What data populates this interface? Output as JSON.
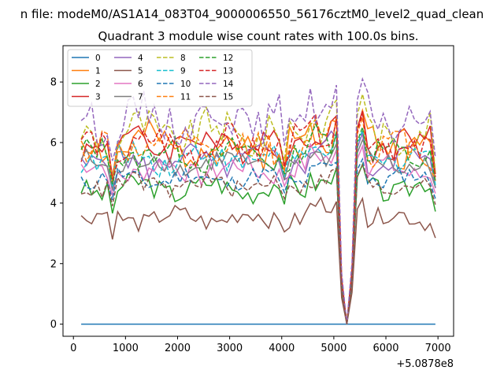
{
  "chart_data": {
    "type": "line",
    "suptitle": "n file: modeM0/AS1A14_083T04_9000006550_56176cztM0_level2_quad_clean",
    "title": "Quadrant 3 module wise count rates with 100.0s bins.",
    "xlabel": "",
    "ylabel": "",
    "x_offset_label": "+5.0878e8",
    "xlim": [
      -200,
      7300
    ],
    "ylim": [
      -0.4,
      9.2
    ],
    "xticks": [
      0,
      1000,
      2000,
      3000,
      4000,
      5000,
      6000,
      7000
    ],
    "yticks": [
      0,
      2,
      4,
      6,
      8
    ],
    "grid": false,
    "legend_position": "top-left",
    "legend_columns": 4,
    "x": [
      150,
      250,
      350,
      450,
      550,
      650,
      750,
      850,
      950,
      1050,
      1150,
      1250,
      1350,
      1450,
      1550,
      1650,
      1750,
      1850,
      1950,
      2050,
      2150,
      2250,
      2350,
      2450,
      2550,
      2650,
      2750,
      2850,
      2950,
      3050,
      3150,
      3250,
      3350,
      3450,
      3550,
      3650,
      3750,
      3850,
      3950,
      4050,
      4150,
      4250,
      4350,
      4450,
      4550,
      4650,
      4750,
      4850,
      4950,
      5050,
      5150,
      5250,
      5350,
      5450,
      5550,
      5650,
      5750,
      5850,
      5950,
      6050,
      6150,
      6250,
      6350,
      6450,
      6550,
      6650,
      6750,
      6850,
      6950
    ],
    "series": [
      {
        "name": "0",
        "color": "#1f77b4",
        "dash": "solid",
        "base": 0.0,
        "dip": 0.0,
        "amp": 0.0,
        "seed": 1
      },
      {
        "name": "1",
        "color": "#ff7f0e",
        "dash": "solid",
        "base": 5.9,
        "dip": 4.6,
        "amp": 0.9,
        "seed": 2
      },
      {
        "name": "2",
        "color": "#2ca02c",
        "dash": "solid",
        "base": 4.5,
        "dip": 3.4,
        "amp": 0.6,
        "seed": 3
      },
      {
        "name": "3",
        "color": "#d62728",
        "dash": "solid",
        "base": 6.0,
        "dip": 5.0,
        "amp": 0.8,
        "seed": 4
      },
      {
        "name": "4",
        "color": "#9467bd",
        "dash": "solid",
        "base": 5.4,
        "dip": 4.2,
        "amp": 0.7,
        "seed": 5
      },
      {
        "name": "5",
        "color": "#8c564b",
        "dash": "solid",
        "base": 3.5,
        "dip": 2.4,
        "amp": 0.5,
        "seed": 6
      },
      {
        "name": "6",
        "color": "#e377c2",
        "dash": "solid",
        "base": 5.1,
        "dip": 3.9,
        "amp": 0.6,
        "seed": 7
      },
      {
        "name": "7",
        "color": "#7f7f7f",
        "dash": "solid",
        "base": 5.3,
        "dip": 4.0,
        "amp": 0.6,
        "seed": 8
      },
      {
        "name": "8",
        "color": "#bcbd22",
        "dash": "dashed",
        "base": 6.3,
        "dip": 5.2,
        "amp": 1.0,
        "seed": 9
      },
      {
        "name": "9",
        "color": "#17becf",
        "dash": "dashed",
        "base": 5.5,
        "dip": 4.3,
        "amp": 0.7,
        "seed": 10
      },
      {
        "name": "10",
        "color": "#1f77b4",
        "dash": "dashed",
        "base": 4.8,
        "dip": 3.7,
        "amp": 0.5,
        "seed": 11
      },
      {
        "name": "11",
        "color": "#ff7f0e",
        "dash": "dashed",
        "base": 5.8,
        "dip": 4.6,
        "amp": 0.8,
        "seed": 12
      },
      {
        "name": "12",
        "color": "#2ca02c",
        "dash": "dashed",
        "base": 5.6,
        "dip": 4.5,
        "amp": 0.7,
        "seed": 13
      },
      {
        "name": "13",
        "color": "#d62728",
        "dash": "dashed",
        "base": 5.9,
        "dip": 4.8,
        "amp": 0.8,
        "seed": 14
      },
      {
        "name": "14",
        "color": "#9467bd",
        "dash": "dashed",
        "base": 6.8,
        "dip": 5.6,
        "amp": 1.0,
        "seed": 15
      },
      {
        "name": "15",
        "color": "#8c564b",
        "dash": "dashed",
        "base": 4.6,
        "dip": 3.5,
        "amp": 0.5,
        "seed": 16
      }
    ]
  }
}
